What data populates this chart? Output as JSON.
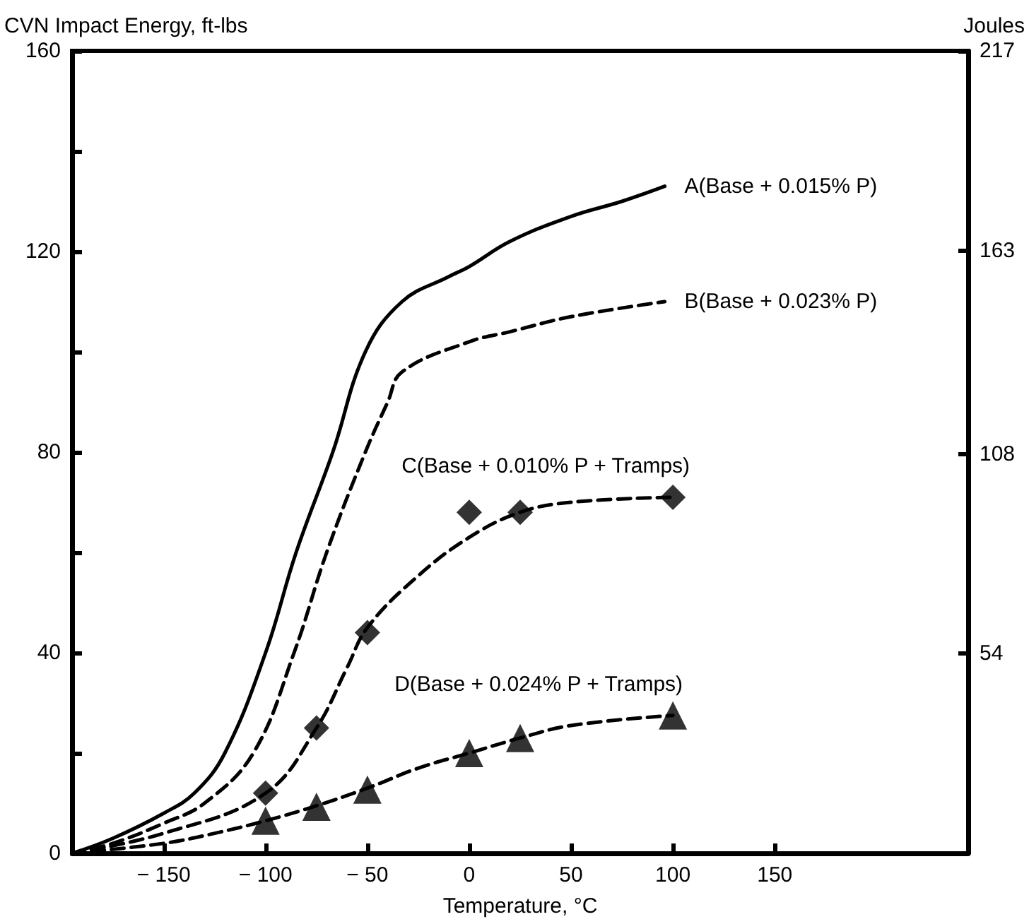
{
  "chart_data": {
    "type": "line",
    "xlabel": "Temperature, °C",
    "ylabel": "CVN Impact Energy, ft-lbs",
    "y2label": "Joules",
    "xlim": [
      -195,
      245
    ],
    "xticks": [
      -150,
      -100,
      -50,
      0,
      50,
      100,
      150
    ],
    "ylim": [
      0,
      160
    ],
    "yticks": [
      0,
      {
        "value": 20,
        "label": null
      },
      40,
      {
        "value": 60,
        "label": null
      },
      80,
      {
        "value": 100,
        "label": null
      },
      120,
      {
        "value": 140,
        "label": null
      },
      160
    ],
    "y2lim": [
      0,
      217
    ],
    "y2ticks": [
      54,
      108,
      163,
      217
    ],
    "grid": false,
    "legend": false,
    "series": [
      {
        "name": "A(Base + 0.015% P)",
        "color": "#000000",
        "line_style": "solid",
        "marker": "none",
        "x": [
          -195,
          -175,
          -150,
          -135,
          -120,
          -100,
          -85,
          -67,
          -51,
          -33,
          -10,
          0,
          20,
          50,
          75,
          96
        ],
        "values": [
          0,
          3,
          8,
          12,
          20,
          40,
          60,
          80,
          100,
          110,
          115,
          117,
          122,
          127,
          130,
          133
        ]
      },
      {
        "name": "B(Base + 0.023% P)",
        "color": "#000000",
        "line_style": "dashed",
        "marker": "none",
        "x": [
          -195,
          -175,
          -150,
          -130,
          -106,
          -86,
          -70,
          -51,
          -40,
          -33,
          0,
          20,
          50,
          96
        ],
        "values": [
          0,
          2,
          6,
          10,
          20,
          40,
          60,
          80,
          90,
          96,
          102,
          104,
          107,
          110
        ]
      },
      {
        "name": "C(Base + 0.010% P + Tramps)",
        "color": "#000000",
        "line_style": "dashed",
        "marker": "none",
        "x": [
          -195,
          -150,
          -100,
          -75,
          -60,
          -50,
          -26,
          0,
          25,
          50,
          100
        ],
        "values": [
          0,
          4,
          12,
          25,
          37,
          45,
          55,
          63,
          68,
          70,
          71
        ]
      },
      {
        "type": "scatter",
        "color": "#000000",
        "marker": "diamond",
        "x": [
          -100,
          -75,
          -50,
          0,
          25,
          100
        ],
        "values": [
          12,
          25,
          44,
          68,
          68,
          71
        ]
      },
      {
        "name": "D(Base + 0.024% P + Tramps)",
        "color": "#000000",
        "line_style": "dashed",
        "marker": "none",
        "x": [
          -195,
          -150,
          -125,
          -100,
          -75,
          -50,
          -25,
          0,
          25,
          50,
          100
        ],
        "values": [
          0,
          2,
          4,
          6.5,
          9.5,
          13,
          17,
          20,
          23,
          25.5,
          27.5
        ]
      },
      {
        "type": "scatter",
        "color": "#000000",
        "marker": "triangle",
        "x": [
          -100,
          -75,
          -50,
          0,
          25,
          100
        ],
        "values": [
          6.5,
          9.3,
          12.7,
          20,
          23,
          27.5
        ]
      }
    ]
  }
}
